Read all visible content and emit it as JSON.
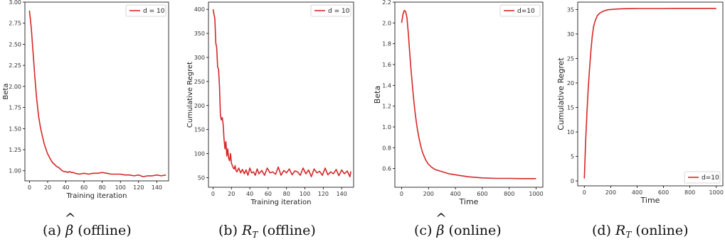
{
  "colors": {
    "line": "#d62728",
    "frame": "#000000",
    "text": "#222222"
  },
  "captions": [
    {
      "prefix": "(a) ",
      "symbol": "β",
      "hat": "^",
      "sub": "",
      "suffix": " (offline)"
    },
    {
      "prefix": "(b) ",
      "symbol": "R",
      "hat": "",
      "sub": "T",
      "suffix": " (offline)"
    },
    {
      "prefix": "(c) ",
      "symbol": "β",
      "hat": "^",
      "sub": "",
      "suffix": " (online)"
    },
    {
      "prefix": "(d) ",
      "symbol": "R",
      "hat": "",
      "sub": "T",
      "suffix": " (online)"
    }
  ],
  "chart_data": [
    {
      "type": "line",
      "xlabel": "Training iteration",
      "ylabel": "Beta",
      "xlim": [
        -5,
        153
      ],
      "ylim": [
        0.88,
        3.0
      ],
      "xticks": [
        "0",
        "20",
        "40",
        "60",
        "80",
        "100",
        "120",
        "140"
      ],
      "yticks": [
        "1.00",
        "1.25",
        "1.50",
        "1.75",
        "2.00",
        "2.25",
        "2.50",
        "2.75",
        "3.00"
      ],
      "legend_position": "top-right",
      "series": [
        {
          "name": "d = 10",
          "x": [
            0,
            2,
            4,
            6,
            8,
            10,
            12,
            14,
            16,
            18,
            20,
            22,
            24,
            26,
            28,
            30,
            32,
            34,
            36,
            38,
            40,
            42,
            44,
            46,
            48,
            50,
            55,
            60,
            65,
            70,
            75,
            80,
            85,
            90,
            95,
            100,
            105,
            110,
            115,
            120,
            125,
            130,
            135,
            140,
            145,
            150
          ],
          "y": [
            2.9,
            2.7,
            2.4,
            2.1,
            1.85,
            1.65,
            1.52,
            1.42,
            1.33,
            1.26,
            1.2,
            1.16,
            1.12,
            1.09,
            1.07,
            1.05,
            1.04,
            1.02,
            1.0,
            0.99,
            0.99,
            0.98,
            0.99,
            0.98,
            0.98,
            0.97,
            0.96,
            0.97,
            0.96,
            0.97,
            0.97,
            0.98,
            0.97,
            0.96,
            0.96,
            0.96,
            0.95,
            0.95,
            0.94,
            0.95,
            0.93,
            0.94,
            0.94,
            0.95,
            0.94,
            0.95
          ]
        }
      ]
    },
    {
      "type": "line",
      "xlabel": "Training iteration",
      "ylabel": "Cumulative Regret",
      "xlim": [
        -5,
        153
      ],
      "ylim": [
        30,
        415
      ],
      "xticks": [
        "0",
        "20",
        "40",
        "60",
        "80",
        "100",
        "120",
        "140"
      ],
      "yticks": [
        "50",
        "100",
        "150",
        "200",
        "250",
        "300",
        "350",
        "400"
      ],
      "legend_position": "top-right",
      "series": [
        {
          "name": "d = 10",
          "x": [
            0,
            2,
            3,
            4,
            5,
            6,
            7,
            8,
            9,
            10,
            11,
            12,
            13,
            14,
            15,
            16,
            17,
            18,
            19,
            20,
            21,
            22,
            23,
            24,
            25,
            26,
            28,
            30,
            32,
            34,
            36,
            38,
            40,
            42,
            44,
            46,
            48,
            50,
            53,
            56,
            59,
            62,
            65,
            68,
            71,
            74,
            77,
            80,
            83,
            86,
            89,
            92,
            95,
            98,
            101,
            104,
            107,
            110,
            113,
            116,
            119,
            122,
            125,
            128,
            131,
            134,
            137,
            140,
            143,
            146,
            149,
            150
          ],
          "y": [
            400,
            380,
            330,
            320,
            280,
            275,
            240,
            180,
            170,
            175,
            160,
            130,
            110,
            125,
            95,
            110,
            90,
            85,
            100,
            80,
            75,
            70,
            68,
            75,
            65,
            62,
            70,
            60,
            67,
            58,
            66,
            55,
            70,
            60,
            62,
            55,
            68,
            58,
            65,
            55,
            70,
            60,
            62,
            57,
            72,
            55,
            65,
            60,
            68,
            56,
            64,
            62,
            55,
            70,
            58,
            66,
            52,
            68,
            60,
            63,
            55,
            70,
            56,
            62,
            58,
            67,
            54,
            66,
            58,
            64,
            52,
            63
          ]
        }
      ]
    },
    {
      "type": "line",
      "xlabel": "Time",
      "ylabel": "Beta",
      "xlim": [
        -50,
        1050
      ],
      "ylim": [
        0.42,
        2.2
      ],
      "xticks": [
        "0",
        "200",
        "400",
        "600",
        "800",
        "1000"
      ],
      "yticks": [
        "0.6",
        "0.8",
        "1.0",
        "1.2",
        "1.4",
        "1.6",
        "1.8",
        "2.0",
        "2.2"
      ],
      "legend_position": "top-right",
      "series": [
        {
          "name": "d=10",
          "x": [
            0,
            10,
            20,
            30,
            40,
            50,
            60,
            70,
            80,
            90,
            100,
            110,
            120,
            130,
            140,
            150,
            160,
            170,
            180,
            190,
            200,
            225,
            250,
            275,
            300,
            350,
            400,
            450,
            500,
            600,
            700,
            800,
            900,
            1000
          ],
          "y": [
            2.0,
            2.08,
            2.12,
            2.11,
            2.05,
            1.9,
            1.72,
            1.55,
            1.4,
            1.26,
            1.14,
            1.04,
            0.96,
            0.89,
            0.83,
            0.78,
            0.74,
            0.71,
            0.68,
            0.66,
            0.64,
            0.61,
            0.59,
            0.58,
            0.57,
            0.55,
            0.54,
            0.53,
            0.52,
            0.51,
            0.505,
            0.505,
            0.503,
            0.503
          ]
        }
      ]
    },
    {
      "type": "line",
      "xlabel": "Time",
      "ylabel": "Cumulative Regret",
      "xlim": [
        -50,
        1050
      ],
      "ylim": [
        -1,
        36.5
      ],
      "xticks": [
        "0",
        "200",
        "400",
        "600",
        "800",
        "1000"
      ],
      "yticks": [
        "0",
        "5",
        "10",
        "15",
        "20",
        "25",
        "30",
        "35"
      ],
      "legend_position": "bottom-right",
      "series": [
        {
          "name": "d=10",
          "x": [
            0,
            10,
            20,
            30,
            40,
            50,
            60,
            70,
            80,
            90,
            100,
            120,
            140,
            160,
            180,
            200,
            250,
            300,
            400,
            500,
            600,
            700,
            800,
            900,
            1000
          ],
          "y": [
            0.5,
            8,
            14,
            19,
            23,
            26.5,
            29.5,
            31.5,
            32.5,
            33.2,
            33.8,
            34.3,
            34.6,
            34.8,
            34.95,
            35.0,
            35.1,
            35.15,
            35.2,
            35.2,
            35.2,
            35.22,
            35.22,
            35.23,
            35.23
          ]
        }
      ]
    }
  ]
}
